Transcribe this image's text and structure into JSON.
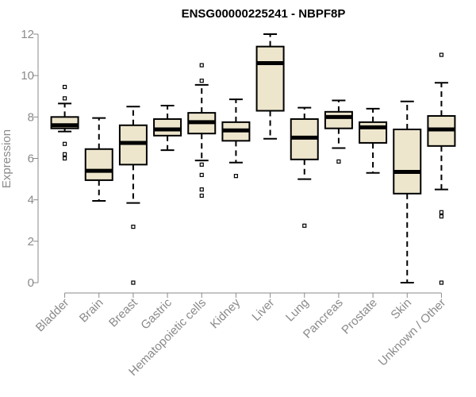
{
  "chart_data": {
    "type": "box",
    "title": "ENSG00000225241 - NBPF8P",
    "ylabel": "Expression",
    "xlabel": "",
    "ylim": [
      0,
      12
    ],
    "yticks": [
      0,
      2,
      4,
      6,
      8,
      10,
      12
    ],
    "grid": false,
    "box_fill": "#ede6cd",
    "box_stroke": "#000000",
    "axis_color": "#8a8a8a",
    "categories": [
      "Bladder",
      "Brain",
      "Breast",
      "Gastric",
      "Hematopoietic cells",
      "Kidney",
      "Liver",
      "Lung",
      "Pancreas",
      "Prostate",
      "Skin",
      "Unknown / Other"
    ],
    "boxes": [
      {
        "category": "Bladder",
        "whisker_low": 7.3,
        "q1": 7.45,
        "median": 7.6,
        "q3": 8.0,
        "whisker_high": 8.65,
        "outliers": [
          6.0,
          6.2,
          6.7,
          8.9,
          9.45
        ]
      },
      {
        "category": "Brain",
        "whisker_low": 3.95,
        "q1": 4.95,
        "median": 5.4,
        "q3": 6.45,
        "whisker_high": 7.95,
        "outliers": []
      },
      {
        "category": "Breast",
        "whisker_low": 3.85,
        "q1": 5.7,
        "median": 6.75,
        "q3": 7.6,
        "whisker_high": 8.5,
        "outliers": [
          2.7,
          0.0
        ]
      },
      {
        "category": "Gastric",
        "whisker_low": 6.4,
        "q1": 7.1,
        "median": 7.4,
        "q3": 7.9,
        "whisker_high": 8.55,
        "outliers": []
      },
      {
        "category": "Hematopoietic cells",
        "whisker_low": 5.9,
        "q1": 7.2,
        "median": 7.75,
        "q3": 8.2,
        "whisker_high": 9.55,
        "outliers": [
          10.5,
          9.75,
          5.7,
          5.2,
          4.5,
          4.2
        ]
      },
      {
        "category": "Kidney",
        "whisker_low": 5.8,
        "q1": 6.85,
        "median": 7.35,
        "q3": 7.75,
        "whisker_high": 8.85,
        "outliers": [
          5.15
        ]
      },
      {
        "category": "Liver",
        "whisker_low": 6.95,
        "q1": 8.3,
        "median": 10.6,
        "q3": 11.4,
        "whisker_high": 12.0,
        "outliers": []
      },
      {
        "category": "Lung",
        "whisker_low": 5.0,
        "q1": 5.95,
        "median": 7.0,
        "q3": 7.9,
        "whisker_high": 8.45,
        "outliers": [
          2.75
        ]
      },
      {
        "category": "Pancreas",
        "whisker_low": 6.5,
        "q1": 7.45,
        "median": 8.0,
        "q3": 8.25,
        "whisker_high": 8.8,
        "outliers": [
          5.85
        ]
      },
      {
        "category": "Prostate",
        "whisker_low": 5.3,
        "q1": 6.75,
        "median": 7.5,
        "q3": 7.75,
        "whisker_high": 8.4,
        "outliers": []
      },
      {
        "category": "Skin",
        "whisker_low": 0.0,
        "q1": 4.3,
        "median": 5.35,
        "q3": 7.4,
        "whisker_high": 8.75,
        "outliers": []
      },
      {
        "category": "Unknown / Other",
        "whisker_low": 4.5,
        "q1": 6.6,
        "median": 7.4,
        "q3": 8.05,
        "whisker_high": 9.65,
        "outliers": [
          11.0,
          3.4,
          3.2,
          0.0
        ]
      }
    ]
  }
}
